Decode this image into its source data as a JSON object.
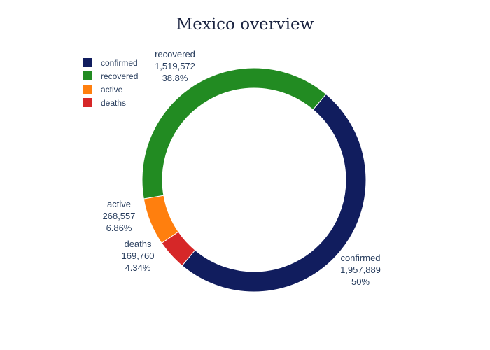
{
  "chart_data": {
    "type": "pie",
    "title": "Mexico overview",
    "hole": true,
    "legend_position": "top-left",
    "slices": [
      {
        "label": "confirmed",
        "value": 1957889,
        "value_text": "1,957,889",
        "percent_text": "50%",
        "color": "#111d5e"
      },
      {
        "label": "deaths",
        "value": 169760,
        "value_text": "169,760",
        "percent_text": "4.34%",
        "color": "#d62728"
      },
      {
        "label": "active",
        "value": 268557,
        "value_text": "268,557",
        "percent_text": "6.86%",
        "color": "#ff7f0e"
      },
      {
        "label": "recovered",
        "value": 1519572,
        "value_text": "1,519,572",
        "percent_text": "38.8%",
        "color": "#228b22"
      }
    ],
    "legend": [
      {
        "label": "confirmed",
        "color": "#111d5e"
      },
      {
        "label": "recovered",
        "color": "#228b22"
      },
      {
        "label": "active",
        "color": "#ff7f0e"
      },
      {
        "label": "deaths",
        "color": "#d62728"
      }
    ]
  }
}
